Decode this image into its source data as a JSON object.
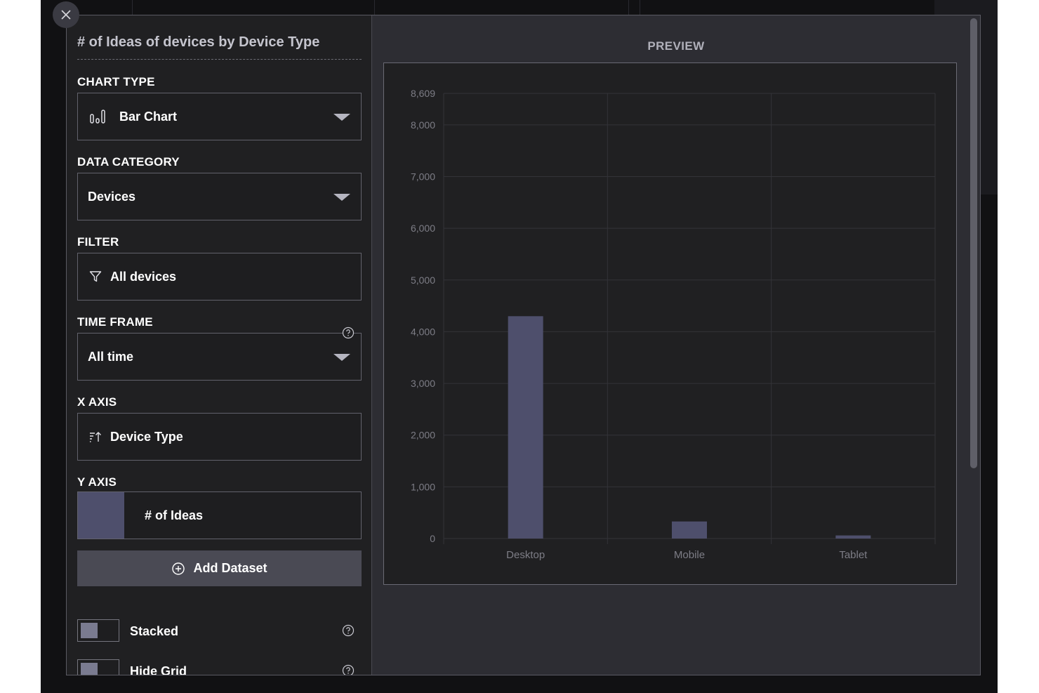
{
  "dialog": {
    "title": "# of Ideas of devices by Device Type",
    "close_icon": "close-icon"
  },
  "chart_type": {
    "label": "CHART TYPE",
    "value": "Bar Chart",
    "icon": "bar-chart-icon"
  },
  "data_category": {
    "label": "DATA CATEGORY",
    "value": "Devices"
  },
  "filter": {
    "label": "FILTER",
    "value": "All devices",
    "icon": "filter-icon"
  },
  "time_frame": {
    "label": "TIME FRAME",
    "value": "All time",
    "help_icon": "help-icon"
  },
  "x_axis": {
    "label": "X AXIS",
    "value": "Device Type",
    "icon": "sort-icon"
  },
  "y_axis": {
    "label": "Y AXIS",
    "value": "# of Ideas",
    "swatch_color": "#4e4f6c"
  },
  "add_dataset": {
    "label": "Add Dataset",
    "icon": "plus-circle-icon"
  },
  "options": [
    {
      "label": "Stacked",
      "enabled": false
    },
    {
      "label": "Hide Grid",
      "enabled": false
    }
  ],
  "preview": {
    "title": "PREVIEW"
  },
  "colors": {
    "bar": "#4e4f6c",
    "grid": "#333338",
    "tick_text": "#7d7d86"
  },
  "chart_data": {
    "type": "bar",
    "categories": [
      "Desktop",
      "Mobile",
      "Tablet"
    ],
    "values": [
      4300,
      330,
      60
    ],
    "ylim": [
      0,
      8609
    ],
    "yticks": [
      0,
      1000,
      2000,
      3000,
      4000,
      5000,
      6000,
      7000,
      8000,
      8609
    ],
    "ytick_labels": [
      "0",
      "1,000",
      "2,000",
      "3,000",
      "4,000",
      "5,000",
      "6,000",
      "7,000",
      "8,000",
      "8,609"
    ],
    "grid": true,
    "title": "",
    "xlabel": "",
    "ylabel": ""
  }
}
